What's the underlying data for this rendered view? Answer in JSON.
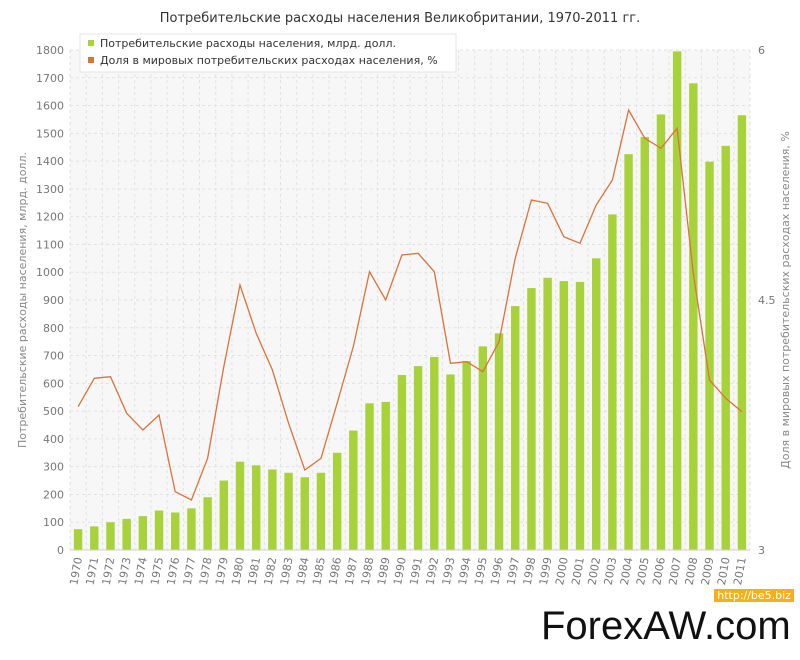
{
  "chart_data": {
    "type": "bar+line",
    "title": "Потребительские расходы населения Великобритании, 1970-2011 гг.",
    "ylabel_left": "Потребительские расходы населения, млрд. долл.",
    "ylabel_right": "Доля в мировых потребительских расходах населения, %",
    "left_ticks": [
      "0",
      "100",
      "200",
      "300",
      "400",
      "500",
      "600",
      "700",
      "800",
      "900",
      "1000",
      "1100",
      "1200",
      "1300",
      "1400",
      "1500",
      "1600",
      "1700",
      "1800"
    ],
    "right_ticks": [
      "3",
      "4.5",
      "6"
    ],
    "ylim_left": [
      0,
      1800
    ],
    "ylim_right": [
      3,
      6
    ],
    "grid": true,
    "legend_position": "top-left",
    "categories": [
      "1970",
      "1971",
      "1972",
      "1973",
      "1974",
      "1975",
      "1976",
      "1977",
      "1978",
      "1979",
      "1980",
      "1981",
      "1982",
      "1983",
      "1984",
      "1985",
      "1986",
      "1987",
      "1988",
      "1989",
      "1990",
      "1991",
      "1992",
      "1993",
      "1994",
      "1995",
      "1996",
      "1997",
      "1998",
      "1999",
      "2000",
      "2001",
      "2002",
      "2003",
      "2004",
      "2005",
      "2006",
      "2007",
      "2008",
      "2009",
      "2010",
      "2011"
    ],
    "series": [
      {
        "name": "Потребительские расходы населения, млрд. долл.",
        "type": "bar",
        "axis": "left",
        "color": "#a8d23a",
        "values": [
          75,
          85,
          100,
          112,
          122,
          142,
          135,
          150,
          190,
          250,
          318,
          305,
          290,
          278,
          262,
          278,
          350,
          430,
          528,
          533,
          630,
          662,
          695,
          632,
          680,
          733,
          780,
          878,
          943,
          980,
          968,
          965,
          1050,
          1208,
          1425,
          1487,
          1568,
          1795,
          1680,
          1398,
          1455,
          1565
        ]
      },
      {
        "name": "Доля в мировых потребительских расходах населения, %",
        "type": "line",
        "axis": "right",
        "color": "#d9733a",
        "values": [
          3.86,
          4.03,
          4.04,
          3.82,
          3.72,
          3.81,
          3.35,
          3.3,
          3.55,
          4.1,
          4.59,
          4.3,
          4.08,
          3.76,
          3.48,
          3.55,
          3.88,
          4.22,
          4.67,
          4.5,
          4.77,
          4.78,
          4.67,
          4.12,
          4.13,
          4.07,
          4.25,
          4.75,
          5.1,
          5.08,
          4.88,
          4.84,
          5.07,
          5.22,
          5.64,
          5.47,
          5.41,
          5.53,
          4.66,
          4.02,
          3.91,
          3.83
        ]
      }
    ]
  },
  "watermarks": {
    "small": "http://be5.biz",
    "big": "ForexAW.com"
  }
}
